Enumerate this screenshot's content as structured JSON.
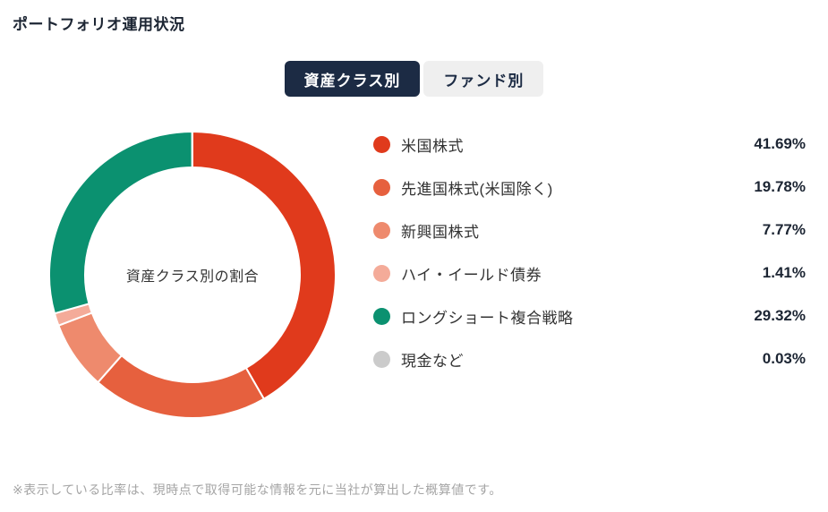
{
  "page": {
    "title": "ポートフォリオ運用状況",
    "footnote": "※表示している比率は、現時点で取得可能な情報を元に当社が算出した概算値です。"
  },
  "tabs": [
    {
      "label": "資産クラス別",
      "active": true
    },
    {
      "label": "ファンド別",
      "active": false
    }
  ],
  "chart_data": {
    "type": "pie",
    "donut": true,
    "center_label": "資産クラス別の割合",
    "start_angle_deg": -90,
    "direction": "clockwise",
    "legend_position": "right",
    "categories": [
      "米国株式",
      "先進国株式(米国除く)",
      "新興国株式",
      "ハイ・イールド債券",
      "ロングショート複合戦略",
      "現金など"
    ],
    "values": [
      41.69,
      19.78,
      7.77,
      1.41,
      29.32,
      0.03
    ],
    "value_labels": [
      "41.69%",
      "19.78%",
      "7.77%",
      "1.41%",
      "29.32%",
      "0.03%"
    ],
    "colors": [
      "#e03a1c",
      "#e6603e",
      "#ee8a6d",
      "#f4ab99",
      "#0b9170",
      "#cbcbcb"
    ]
  },
  "theme": {
    "navy": "#1c2b44",
    "title_color": "#1c2533",
    "inactive_tab_bg": "#efefef",
    "text_color": "#333333",
    "footnote_color": "#a5a5a5",
    "segment_gap_color": "#ffffff"
  }
}
